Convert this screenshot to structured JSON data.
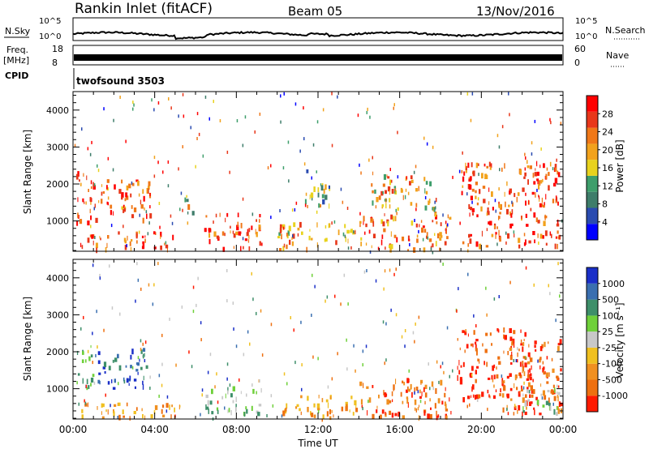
{
  "header": {
    "station": "Rankin Inlet (fitACF)",
    "beam": "Beam 05",
    "date": "13/Nov/2016"
  },
  "noise_panel": {
    "left_label": "N.Sky",
    "right_label": "N.Search",
    "ticks": [
      "10^5",
      "10^0"
    ]
  },
  "freq_panel": {
    "left_label_1": "Freq.",
    "left_label_2": "[MHz]",
    "left_ticks": [
      "18",
      "8"
    ],
    "right_label": "Nave",
    "right_ticks": [
      "60",
      "0"
    ]
  },
  "cpid_panel": {
    "label": "CPID",
    "program": "twofsound 3503"
  },
  "colors": {
    "power": [
      "#0000ff",
      "#2a4bb0",
      "#3e7d6a",
      "#3e9e6b",
      "#e8d21d",
      "#f2a21c",
      "#f07818",
      "#e8371a",
      "#ff0000"
    ],
    "velocity": [
      "#1a2fc8",
      "#3a6fb0",
      "#3e8f6a",
      "#6fd03a",
      "#c8c8c8",
      "#f0c020",
      "#f09020",
      "#ee7010",
      "#ff1a00"
    ]
  },
  "chart_data": [
    {
      "type": "heatmap",
      "name": "power",
      "ylabel": "Slant Range [km]",
      "yticks": [
        1000,
        2000,
        3000,
        4000
      ],
      "ylim": [
        180,
        4500
      ],
      "xticks": [
        "00:00",
        "04:00",
        "08:00",
        "12:00",
        "16:00",
        "20:00",
        "00:00"
      ],
      "xlim_hours": [
        0,
        24
      ],
      "colorbar": {
        "label": "Power [dB]",
        "ticks": [
          "4",
          "8",
          "12",
          "16",
          "20",
          "24",
          "28"
        ],
        "range": [
          0,
          30
        ]
      },
      "echo_regions": [
        {
          "t0": 0.1,
          "t1": 1.2,
          "r0": 900,
          "r1": 2300,
          "level": 26
        },
        {
          "t0": 1.2,
          "t1": 2.6,
          "r0": 1200,
          "r1": 2100,
          "level": 22
        },
        {
          "t0": 2.4,
          "t1": 3.8,
          "r0": 1000,
          "r1": 2100,
          "level": 24
        },
        {
          "t0": 0.3,
          "t1": 5.0,
          "r0": 180,
          "r1": 700,
          "level": 25
        },
        {
          "t0": 5.4,
          "t1": 5.9,
          "r0": 1200,
          "r1": 1900,
          "level": 14
        },
        {
          "t0": 6.4,
          "t1": 9.2,
          "r0": 200,
          "r1": 1200,
          "level": 24
        },
        {
          "t0": 10.0,
          "t1": 14.0,
          "r0": 200,
          "r1": 900,
          "level": 20
        },
        {
          "t0": 14.0,
          "t1": 18.5,
          "r0": 200,
          "r1": 1200,
          "level": 22
        },
        {
          "t0": 14.5,
          "t1": 17.8,
          "r0": 1300,
          "r1": 2300,
          "level": 18
        },
        {
          "t0": 19.0,
          "t1": 23.8,
          "r0": 300,
          "r1": 2600,
          "level": 24
        },
        {
          "t0": 11.3,
          "t1": 12.6,
          "r0": 1400,
          "r1": 2400,
          "level": 12
        }
      ]
    },
    {
      "type": "heatmap",
      "name": "velocity",
      "ylabel": "Slant Range [km]",
      "yticks": [
        1000,
        2000,
        3000,
        4000
      ],
      "ylim": [
        180,
        4500
      ],
      "xticks": [
        "00:00",
        "04:00",
        "08:00",
        "12:00",
        "16:00",
        "20:00",
        "00:00"
      ],
      "xlim_hours": [
        0,
        24
      ],
      "xlabel": "Time UT",
      "colorbar": {
        "label": "Velocity [m s⁻¹]",
        "ticks": [
          "1000",
          "500",
          "100",
          "25",
          "-25",
          "-100",
          "-500",
          "-1000"
        ]
      },
      "echo_regions": [
        {
          "t0": 0.1,
          "t1": 1.0,
          "r0": 1000,
          "r1": 2200,
          "level": 2
        },
        {
          "t0": 1.2,
          "t1": 3.6,
          "r0": 1000,
          "r1": 2100,
          "level": 1
        },
        {
          "t0": 6.4,
          "t1": 9.2,
          "r0": 300,
          "r1": 1000,
          "level": 3
        },
        {
          "t0": 0.3,
          "t1": 6.0,
          "r0": 180,
          "r1": 600,
          "level": 6
        },
        {
          "t0": 10.0,
          "t1": 14.0,
          "r0": 200,
          "r1": 800,
          "level": 6
        },
        {
          "t0": 14.0,
          "t1": 18.5,
          "r0": 200,
          "r1": 1300,
          "level": 7
        },
        {
          "t0": 18.8,
          "t1": 22.5,
          "r0": 700,
          "r1": 2600,
          "level": 8
        },
        {
          "t0": 21.0,
          "t1": 23.9,
          "r0": 300,
          "r1": 2300,
          "level": 7
        },
        {
          "t0": 22.0,
          "t1": 23.8,
          "r0": 300,
          "r1": 1000,
          "level": 3
        }
      ]
    }
  ]
}
